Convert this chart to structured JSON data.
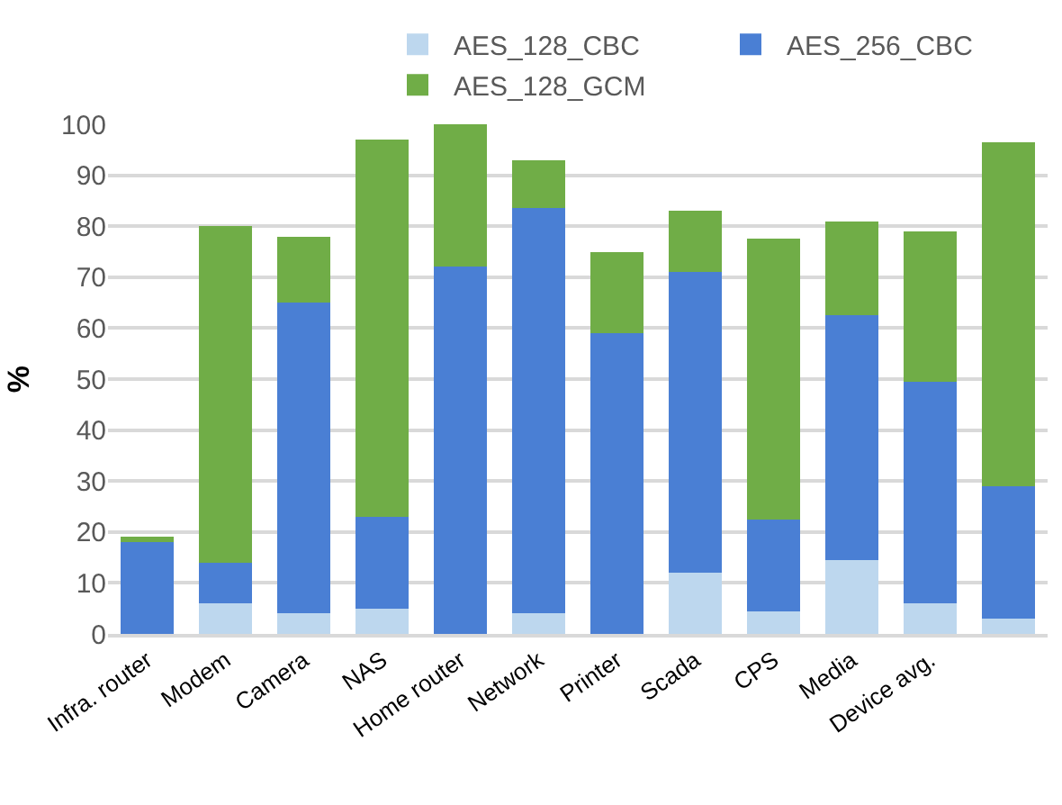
{
  "chart_data": {
    "type": "bar",
    "stacked": true,
    "ylabel": "%",
    "categories": [
      "Infra. router",
      "Modem",
      "Camera",
      "NAS",
      "Home router",
      "Network",
      "Printer",
      "Scada",
      "CPS",
      "Media",
      "Device avg.",
      null
    ],
    "series": [
      {
        "name": "AES_128_CBC",
        "color": "#bdd7ee",
        "values": [
          0,
          6,
          4,
          5,
          0,
          4,
          0,
          12,
          4.5,
          14.5,
          6,
          3
        ]
      },
      {
        "name": "AES_256_CBC",
        "color": "#4a7fd4",
        "values": [
          18,
          8,
          61,
          18,
          72,
          79.5,
          59,
          59,
          18,
          48,
          43.5,
          26
        ]
      },
      {
        "name": "AES_128_GCM",
        "color": "#70ad47",
        "values": [
          1,
          66,
          13,
          74,
          28,
          9.5,
          16,
          12,
          55,
          18.5,
          29.5,
          67.5
        ]
      }
    ],
    "ylim": [
      0,
      100
    ],
    "yticks": [
      0,
      10,
      20,
      30,
      40,
      50,
      60,
      70,
      80,
      90,
      100
    ],
    "grid": "y",
    "legend": "top right"
  }
}
